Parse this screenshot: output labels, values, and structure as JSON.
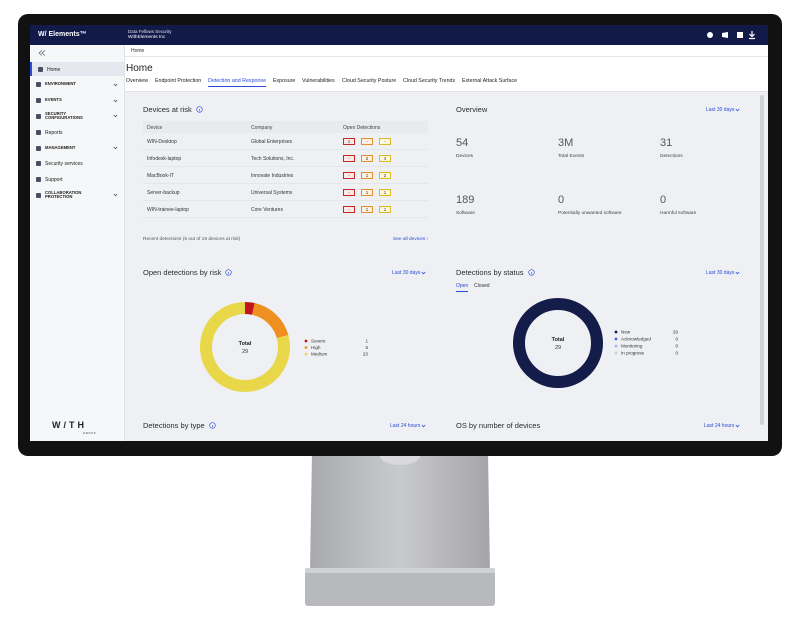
{
  "topbar": {
    "brand": "W/ Elements™",
    "org": "Data Fellows Security",
    "tenant": "WithElements Inc"
  },
  "sidebar": {
    "items": [
      "Home",
      "ENVIRONMENT",
      "EVENTS",
      "SECURITY CONFIGURATIONS",
      "Reports",
      "MANAGEMENT",
      "Security services",
      "Support",
      "COLLABORATION PROTECTION"
    ],
    "active": 0,
    "logo": "W/TH",
    "logo_sub": "GROUP"
  },
  "breadcrumb": "Home",
  "page_title": "Home",
  "tabs": {
    "items": [
      "Overview",
      "Endpoint Protection",
      "Detection and Response",
      "Exposure",
      "Vulnerabilities",
      "Cloud Security Posture",
      "Cloud Security Trends",
      "External Attack Surface"
    ],
    "active": 2
  },
  "devices_at_risk": {
    "title": "Devices at risk",
    "columns": [
      "Device",
      "Company",
      "Open Detections"
    ],
    "rows": [
      {
        "device": "WIN-Desktop",
        "company": "Global Enterprises",
        "detections": [
          "1",
          "-",
          "-"
        ]
      },
      {
        "device": "Infodesk-laptop",
        "company": "Tech Solutions, Inc.",
        "detections": [
          "-",
          "2",
          "4"
        ]
      },
      {
        "device": "MacBook-IT",
        "company": "Innovate Industries",
        "detections": [
          "-",
          "1",
          "2"
        ]
      },
      {
        "device": "Server-backup",
        "company": "Universal Systems",
        "detections": [
          "-",
          "1",
          "1"
        ]
      },
      {
        "device": "WIN-trainee-laptop",
        "company": "Core Ventures",
        "detections": [
          "-",
          "1",
          "1"
        ]
      }
    ],
    "footer": "Recent detections (5 out of 19 devices at risk)",
    "link": "See all devices ›"
  },
  "overview": {
    "title": "Overview",
    "period": "Last 30 days",
    "stats": [
      {
        "value": 54,
        "label": "Devices"
      },
      {
        "value": "3M",
        "label": "Total Events"
      },
      {
        "value": 31,
        "label": "Detections"
      },
      {
        "value": 189,
        "label": "Software"
      },
      {
        "value": 0,
        "label": "Potentially unwanted software"
      },
      {
        "value": 0,
        "label": "Harmful software"
      }
    ]
  },
  "chart_data": [
    {
      "type": "donut",
      "title": "Open detections by risk",
      "period": "Last 30 days",
      "center_label": "Total",
      "total": 29,
      "categories": [
        "Severe",
        "High",
        "Medium"
      ],
      "values": [
        1,
        5,
        23
      ],
      "colors": [
        "#c0161b",
        "#ef8f1f",
        "#e9d74a"
      ]
    },
    {
      "type": "donut",
      "title": "Detections by status",
      "period": "Last 30 days",
      "tabs": [
        "Open",
        "Closed"
      ],
      "center_label": "Total",
      "total": 29,
      "categories": [
        "New",
        "Acknowledged",
        "Monitoring",
        "In progress"
      ],
      "values": [
        29,
        0,
        0,
        0
      ],
      "colors": [
        "#141c4a",
        "#3f6bd0",
        "#9fb5e8",
        "#c9cfe0"
      ]
    }
  ],
  "lower_panels": [
    {
      "title": "Detections by type",
      "period": "Last 24 hours"
    },
    {
      "title": "OS by number of devices",
      "period": "Last 24 hours"
    }
  ]
}
